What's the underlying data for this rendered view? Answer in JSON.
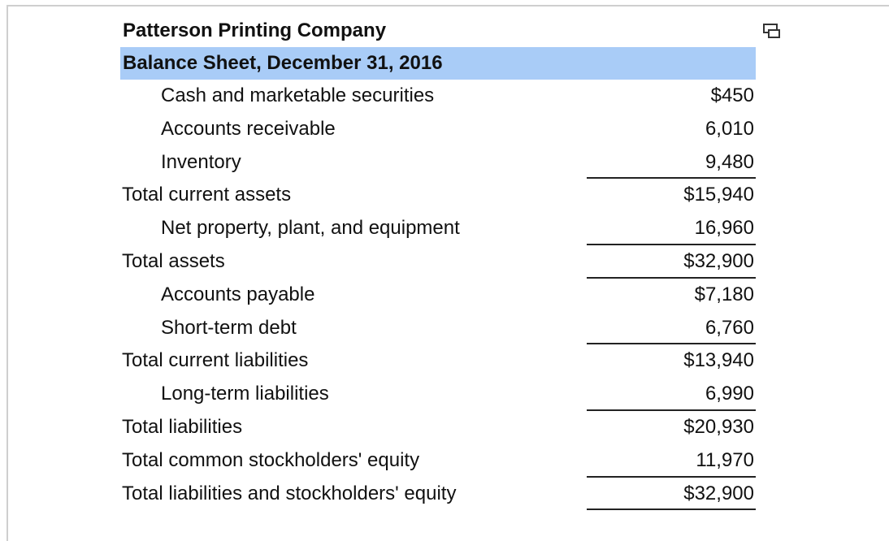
{
  "company": "Patterson Printing Company",
  "title": "Balance Sheet, December 31, 2016",
  "rows": [
    {
      "label": "Cash and marketable securities",
      "amount": "$450"
    },
    {
      "label": "Accounts receivable",
      "amount": "6,010"
    },
    {
      "label": "Inventory",
      "amount": "9,480"
    },
    {
      "label": "Total current assets",
      "amount": "$15,940"
    },
    {
      "label": "Net property, plant, and equipment",
      "amount": "16,960"
    },
    {
      "label": "Total assets",
      "amount": "$32,900"
    },
    {
      "label": "Accounts payable",
      "amount": "$7,180"
    },
    {
      "label": "Short-term debt",
      "amount": "6,760"
    },
    {
      "label": "Total current liabilities",
      "amount": "$13,940"
    },
    {
      "label": "Long-term liabilities",
      "amount": "6,990"
    },
    {
      "label": "Total liabilities",
      "amount": "$20,930"
    },
    {
      "label": "Total common stockholders' equity",
      "amount": "11,970"
    },
    {
      "label": "Total liabilities and stockholders' equity",
      "amount": "$32,900"
    }
  ],
  "icons": {
    "copy": "copy-to-clipboard-icon"
  }
}
